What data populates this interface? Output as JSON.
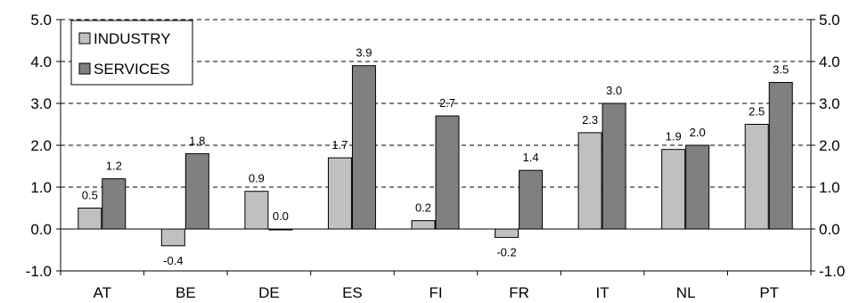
{
  "chart_data": {
    "type": "bar",
    "categories": [
      "AT",
      "BE",
      "DE",
      "ES",
      "FI",
      "FR",
      "IT",
      "NL",
      "PT"
    ],
    "series": [
      {
        "name": "INDUSTRY",
        "color": "#c0c0c0",
        "values": [
          0.5,
          -0.4,
          0.9,
          1.7,
          0.2,
          -0.2,
          2.3,
          1.9,
          2.5
        ],
        "labels": [
          "0.5",
          "-0.4",
          "0.9",
          "1.7",
          "0.2",
          "-0.2",
          "2.3",
          "1.9",
          "2.5"
        ]
      },
      {
        "name": "SERVICES",
        "color": "#808080",
        "values": [
          1.2,
          1.8,
          0.0,
          3.9,
          2.7,
          1.4,
          3.0,
          2.0,
          3.5
        ],
        "labels": [
          "1.2",
          "1.8",
          "0.0",
          "3.9",
          "2.7",
          "1.4",
          "3.0",
          "2.0",
          "3.5"
        ]
      }
    ],
    "ylim": [
      -1.0,
      5.0
    ],
    "y_ticks": [
      "-1.0",
      "0.0",
      "1.0",
      "2.0",
      "3.0",
      "4.0",
      "5.0"
    ],
    "y_tick_values": [
      -1,
      0,
      1,
      2,
      3,
      4,
      5
    ],
    "grid": true,
    "legend_position": "top-left",
    "secondary_y_axis": true,
    "title": "",
    "xlabel": "",
    "ylabel": ""
  }
}
